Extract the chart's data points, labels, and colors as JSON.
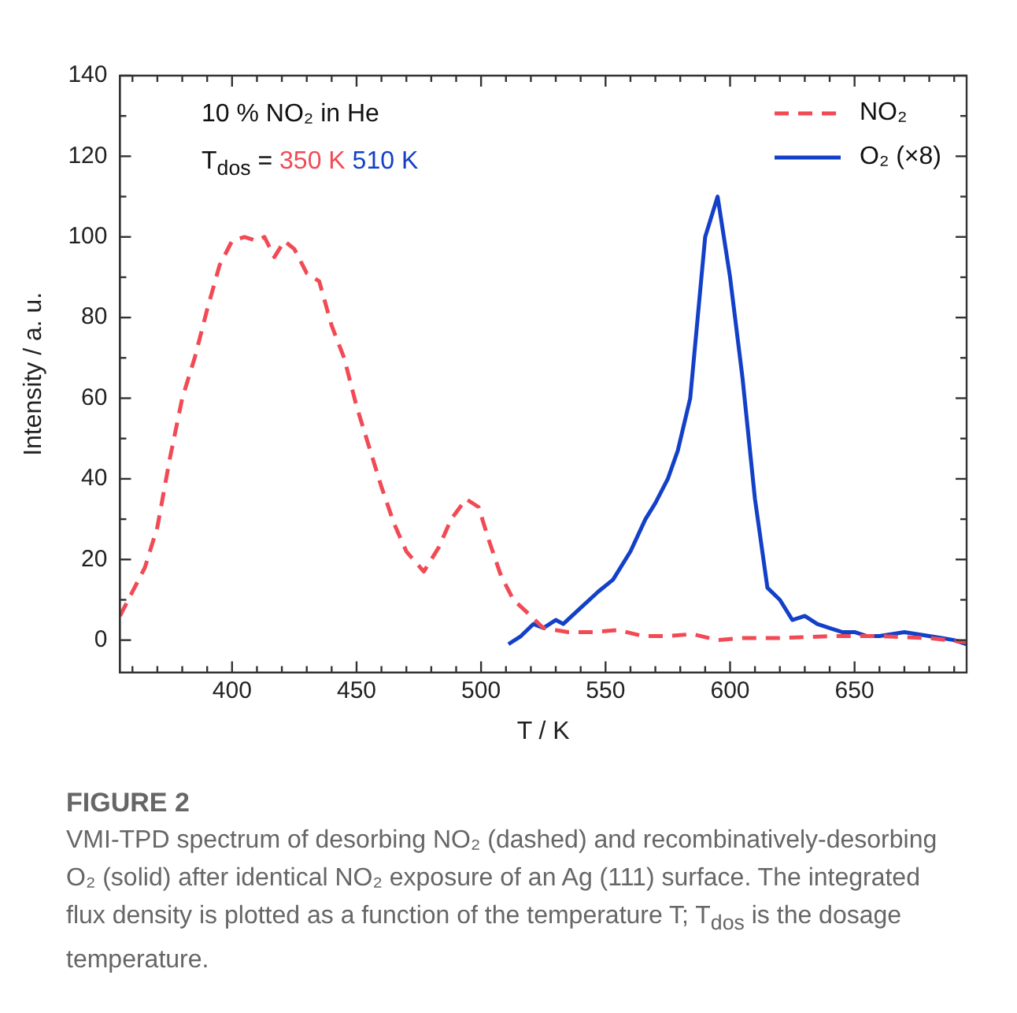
{
  "chart_data": {
    "type": "line",
    "title": "FIGURE 2",
    "xlabel": "T / K",
    "ylabel": "Intensity / a. u.",
    "xlim": [
      355,
      695
    ],
    "xticks": [
      400,
      450,
      500,
      550,
      600,
      650
    ],
    "ylim": [
      -8,
      140
    ],
    "yticks": [
      0,
      20,
      40,
      60,
      80,
      100,
      120,
      140
    ],
    "grid": false,
    "legend": "top right",
    "annotations": [
      "10 % NO₂ in He",
      "T$_{dos}$ =",
      "350 K",
      "510 K",
      "VMI-TPD spectrum of desorbing NO₂ (dashed) and recombinatively-desorbing O₂ (solid) after identical NO₂ exposure of an Ag (111) surface. The integrated flux density is plotted as a function of the temperature T; T$_{dos}$ is the dosage temperature."
    ],
    "series": [
      {
        "name": "NO₂",
        "color": "#f24a55",
        "line_style": "dashed",
        "x": [
          355,
          360,
          365,
          370,
          375,
          380,
          385,
          390,
          395,
          400,
          405,
          410,
          413,
          417,
          421,
          425,
          430,
          435,
          440,
          445,
          450,
          455,
          460,
          465,
          470,
          477,
          483,
          488,
          494,
          499,
          503,
          508,
          513,
          520,
          525,
          535,
          545,
          555,
          565,
          575,
          585,
          595,
          605,
          620,
          640,
          660,
          680,
          695
        ],
        "values": [
          6,
          12,
          18,
          28,
          45,
          60,
          70,
          82,
          93,
          99,
          100,
          99,
          100,
          95,
          99,
          97,
          91,
          89,
          78,
          70,
          58,
          48,
          38,
          29,
          22,
          17,
          23,
          30,
          35,
          33,
          25,
          16,
          10,
          6,
          3,
          2,
          2,
          2.5,
          1,
          1,
          1.5,
          0,
          0.5,
          0.5,
          1,
          1,
          0.5,
          -0.5
        ]
      },
      {
        "name": "O₂ (×8)",
        "color": "#1340c8",
        "line_style": "solid",
        "x": [
          511,
          516,
          521,
          525,
          530,
          533,
          540,
          547,
          553,
          560,
          566,
          570,
          575,
          579,
          584,
          587,
          590,
          595,
          600,
          605,
          610,
          615,
          620,
          625,
          630,
          635,
          640,
          645,
          650,
          655,
          660,
          665,
          670,
          675,
          680,
          685,
          690,
          695
        ],
        "values": [
          -1,
          1,
          4,
          3,
          5,
          4,
          8,
          12,
          15,
          22,
          30,
          34,
          40,
          47,
          60,
          80,
          100,
          110,
          90,
          65,
          35,
          13,
          10,
          5,
          6,
          4,
          3,
          2,
          2,
          1,
          1,
          1.5,
          2,
          1.5,
          1,
          0.5,
          0,
          -1
        ]
      }
    ]
  }
}
